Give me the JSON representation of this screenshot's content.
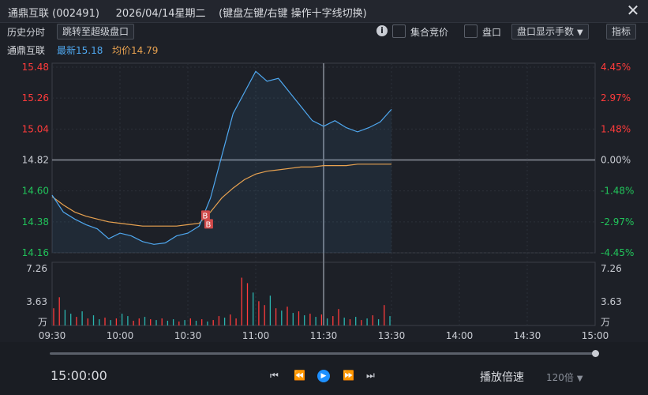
{
  "titlebar": {
    "stock_name": "通鼎互联",
    "stock_code": "(002491)",
    "date": "2026/04/14星期二",
    "hint": "(键盘左键/右键 操作十字线切换)",
    "close_icon": "close-icon"
  },
  "toolbar": {
    "history_label": "历史分时",
    "jump_button": "跳转至超级盘口",
    "auction_label": "集合竞价",
    "panel_label": "盘口",
    "display_select": "盘口显示手数",
    "indicator_button": "指标",
    "icons": [
      "info-icon",
      "chevron-down-icon"
    ]
  },
  "infobar": {
    "name": "通鼎互联",
    "last_label": "最新",
    "last_value": "15.18",
    "avg_label": "均价",
    "avg_value": "14.79"
  },
  "colors": {
    "up": "#ff3b3b",
    "down": "#21c35a",
    "price_line": "#4fa8f0",
    "avg_line": "#e8a250",
    "flat": "#c9ccd3"
  },
  "price_axis": {
    "left_ticks": [
      "15.48",
      "15.26",
      "15.04",
      "14.82",
      "14.60",
      "14.38",
      "14.16"
    ],
    "right_ticks": [
      "4.45%",
      "2.97%",
      "1.48%",
      "0.00%",
      "-1.48%",
      "-2.97%",
      "-4.45%"
    ]
  },
  "volume_axis": {
    "ticks": [
      "7.26",
      "3.63",
      "万"
    ]
  },
  "time_axis": {
    "ticks": [
      "09:30",
      "10:00",
      "10:30",
      "11:00",
      "11:30",
      "13:30",
      "14:00",
      "14:30",
      "15:00"
    ]
  },
  "markers": {
    "b_label": "B"
  },
  "chart_data": {
    "type": "line",
    "title": "",
    "xlabel": "",
    "ylabel": "",
    "ylim": [
      14.16,
      15.48
    ],
    "prev_close": 14.82,
    "x": [
      "09:30",
      "09:35",
      "09:40",
      "09:45",
      "09:50",
      "09:55",
      "10:00",
      "10:05",
      "10:10",
      "10:15",
      "10:20",
      "10:25",
      "10:30",
      "10:35",
      "10:40",
      "10:45",
      "10:50",
      "10:55",
      "11:00",
      "11:05",
      "11:10",
      "11:15",
      "11:20",
      "11:25",
      "11:30",
      "13:00",
      "13:05",
      "13:10",
      "13:15",
      "13:20",
      "13:25"
    ],
    "series": [
      {
        "name": "最新",
        "values": [
          14.57,
          14.45,
          14.4,
          14.36,
          14.33,
          14.26,
          14.3,
          14.28,
          14.24,
          14.22,
          14.23,
          14.28,
          14.3,
          14.35,
          14.55,
          14.85,
          15.15,
          15.3,
          15.45,
          15.38,
          15.4,
          15.3,
          15.2,
          15.1,
          15.06,
          15.1,
          15.05,
          15.02,
          15.05,
          15.09,
          15.18
        ]
      },
      {
        "name": "均价",
        "values": [
          14.56,
          14.5,
          14.45,
          14.42,
          14.4,
          14.38,
          14.37,
          14.36,
          14.35,
          14.35,
          14.35,
          14.35,
          14.36,
          14.37,
          14.45,
          14.55,
          14.62,
          14.68,
          14.72,
          14.74,
          14.75,
          14.76,
          14.77,
          14.77,
          14.78,
          14.78,
          14.78,
          14.79,
          14.79,
          14.79,
          14.79
        ]
      }
    ],
    "volume": {
      "unit": "万",
      "max": 7.26,
      "values": [
        2.2,
        3.6,
        2.0,
        1.5,
        1.1,
        1.8,
        0.9,
        1.3,
        0.8,
        1.0,
        0.7,
        0.9,
        1.5,
        1.2,
        0.6,
        0.9,
        1.1,
        0.8,
        0.7,
        0.9,
        0.6,
        0.8,
        0.5,
        0.7,
        0.9,
        0.6,
        0.8,
        0.5,
        0.7,
        1.2,
        1.0,
        1.4,
        0.9,
        6.1,
        5.4,
        4.2,
        3.1,
        2.6,
        3.8,
        2.2,
        1.9,
        2.4,
        1.6,
        1.8,
        1.3,
        1.5,
        1.1,
        1.4,
        0.9,
        1.2,
        2.1,
        1.0,
        0.8,
        1.1,
        0.7,
        0.9,
        1.3,
        0.8,
        2.6,
        1.2
      ],
      "up": [
        true,
        true,
        false,
        false,
        true,
        false,
        true,
        false,
        false,
        true,
        false,
        true,
        false,
        false,
        true,
        true,
        false,
        true,
        false,
        true,
        false,
        false,
        true,
        false,
        true,
        false,
        true,
        false,
        true,
        true,
        false,
        true,
        true,
        true,
        true,
        false,
        true,
        true,
        false,
        true,
        false,
        true,
        false,
        true,
        false,
        true,
        false,
        true,
        false,
        true,
        true,
        false,
        true,
        false,
        true,
        false,
        true,
        false,
        true,
        false
      ]
    }
  },
  "playback": {
    "clock": "15:00:00",
    "speed_label": "播放倍速",
    "speed_value": "120倍",
    "controls": [
      "skip-start-icon",
      "step-back-icon",
      "play-icon",
      "step-forward-icon",
      "skip-end-icon"
    ],
    "progress": 1.0
  }
}
